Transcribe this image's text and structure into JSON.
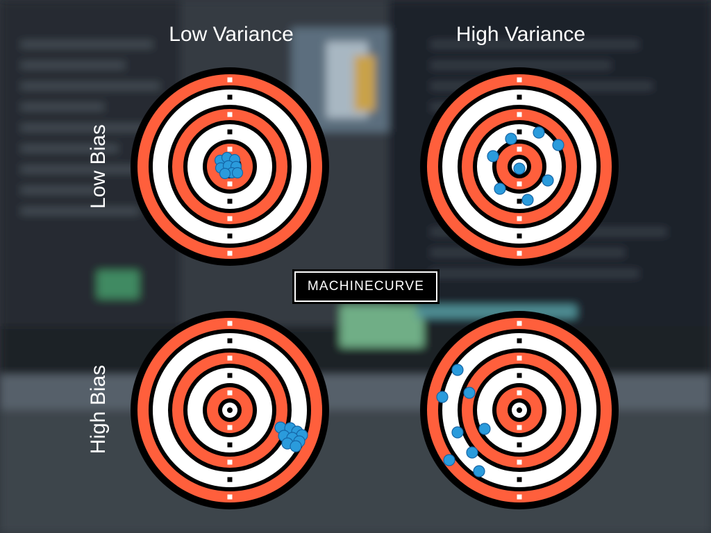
{
  "columns": {
    "low_variance": "Low Variance",
    "high_variance": "High Variance"
  },
  "rows": {
    "low_bias": "Low Bias",
    "high_bias": "High Bias"
  },
  "brand": {
    "logo_text": "MACHINECURVE"
  },
  "colors": {
    "ring_orange": "#ff5f3c",
    "ring_white": "#ffffff",
    "ring_black": "#000000",
    "dot_blue": "#2a9bdc",
    "dot_outline": "#1565a6"
  },
  "icons": {
    "target": "target-icon",
    "dot": "dart-hit-dot"
  }
}
